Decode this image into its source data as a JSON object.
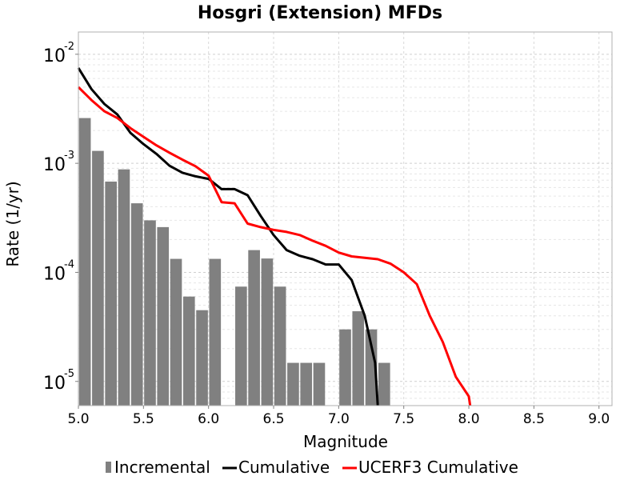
{
  "chart_data": {
    "type": "bar",
    "title": "Hosgri (Extension) MFDs",
    "xlabel": "Magnitude",
    "ylabel": "Rate (1/yr)",
    "xlim": [
      5.0,
      9.1
    ],
    "ylim": [
      6e-06,
      0.016
    ],
    "yscale": "log",
    "grid": true,
    "legend_position": "bottom",
    "x_ticks": [
      "5.0",
      "5.5",
      "6.0",
      "6.5",
      "7.0",
      "7.5",
      "8.0",
      "8.5",
      "9.0"
    ],
    "y_ticks": [
      {
        "base": "10",
        "exp": "-5",
        "value": 1e-05
      },
      {
        "base": "10",
        "exp": "-4",
        "value": 0.0001
      },
      {
        "base": "10",
        "exp": "-3",
        "value": 0.001
      },
      {
        "base": "10",
        "exp": "-2",
        "value": 0.01
      }
    ],
    "series": [
      {
        "name": "Incremental",
        "kind": "bar",
        "color": "#808080",
        "bar_width": 0.09,
        "x": [
          5.05,
          5.15,
          5.25,
          5.35,
          5.45,
          5.55,
          5.65,
          5.75,
          5.85,
          5.95,
          6.05,
          6.25,
          6.35,
          6.45,
          6.55,
          6.65,
          6.75,
          6.85,
          7.05,
          7.15,
          7.25,
          7.35
        ],
        "y": [
          0.0026,
          0.0013,
          0.00068,
          0.00088,
          0.00043,
          0.0003,
          0.00026,
          0.000133,
          6e-05,
          4.5e-05,
          0.000133,
          7.4e-05,
          0.00016,
          0.000134,
          7.4e-05,
          1.48e-05,
          1.48e-05,
          1.48e-05,
          3e-05,
          4.4e-05,
          3e-05,
          1.48e-05
        ]
      },
      {
        "name": "Cumulative",
        "kind": "line",
        "color": "#000000",
        "x": [
          5.0,
          5.1,
          5.2,
          5.3,
          5.4,
          5.5,
          5.6,
          5.7,
          5.8,
          5.9,
          6.0,
          6.1,
          6.2,
          6.3,
          6.4,
          6.5,
          6.6,
          6.7,
          6.8,
          6.9,
          7.0,
          7.1,
          7.2,
          7.28,
          7.3
        ],
        "y": [
          0.0075,
          0.0048,
          0.0035,
          0.0028,
          0.0019,
          0.0015,
          0.00122,
          0.00095,
          0.00082,
          0.00076,
          0.00072,
          0.00058,
          0.00058,
          0.00051,
          0.00033,
          0.00022,
          0.00016,
          0.000142,
          0.000132,
          0.000118,
          0.000118,
          8.5e-05,
          4e-05,
          1.48e-05,
          6e-06
        ]
      },
      {
        "name": "UCERF3 Cumulative",
        "kind": "line",
        "color": "#ff0000",
        "x": [
          5.0,
          5.1,
          5.2,
          5.3,
          5.4,
          5.5,
          5.6,
          5.7,
          5.8,
          5.9,
          6.0,
          6.1,
          6.2,
          6.3,
          6.4,
          6.5,
          6.6,
          6.7,
          6.8,
          6.9,
          7.0,
          7.1,
          7.2,
          7.3,
          7.4,
          7.5,
          7.6,
          7.7,
          7.8,
          7.9,
          8.0,
          8.01
        ],
        "y": [
          0.005,
          0.0038,
          0.003,
          0.0026,
          0.0021,
          0.00175,
          0.00146,
          0.00125,
          0.00108,
          0.00094,
          0.00077,
          0.00044,
          0.00043,
          0.00028,
          0.00026,
          0.000245,
          0.000235,
          0.00022,
          0.000195,
          0.000175,
          0.000152,
          0.00014,
          0.000136,
          0.000132,
          0.00012,
          0.0001,
          7.8e-05,
          4e-05,
          2.3e-05,
          1.1e-05,
          7.3e-06,
          6e-06
        ]
      }
    ]
  }
}
